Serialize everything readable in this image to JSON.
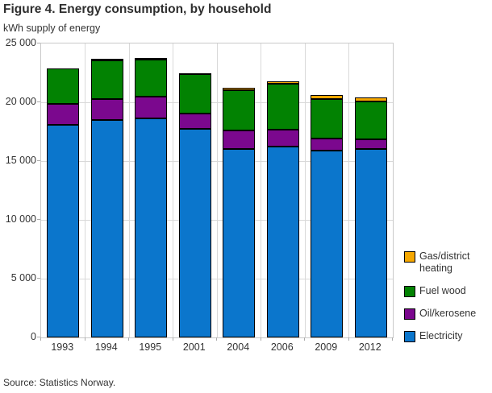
{
  "header": {
    "title": "Figure 4. Energy consumption, by household"
  },
  "chart_data": {
    "type": "bar",
    "stacked": true,
    "title": "Figure 4. Energy consumption, by household",
    "y_axis_title": "kWh supply of energy",
    "categories": [
      "1993",
      "1994",
      "1995",
      "2001",
      "2004",
      "2006",
      "2009",
      "2012"
    ],
    "series": [
      {
        "name": "Electricity",
        "color": "#0b76cc",
        "values": [
          18100,
          18500,
          18600,
          17750,
          16000,
          16250,
          15900,
          16000
        ]
      },
      {
        "name": "Oil/kerosene",
        "color": "#7b088e",
        "values": [
          1750,
          1800,
          1900,
          1300,
          1600,
          1450,
          1050,
          850
        ]
      },
      {
        "name": "Fuel wood",
        "color": "#028202",
        "values": [
          3000,
          3250,
          3150,
          3350,
          3450,
          3850,
          3350,
          3200
        ]
      },
      {
        "name": "Gas/district heating",
        "color": "#f5a700",
        "values": [
          0,
          150,
          100,
          100,
          150,
          250,
          300,
          350
        ]
      }
    ],
    "totals": [
      22850,
      23700,
      23750,
      22500,
      21200,
      21800,
      20600,
      20400
    ],
    "ylim": [
      0,
      25000
    ],
    "y_ticks": [
      "25 000",
      "20 000",
      "15 000",
      "10 000",
      "5 000",
      "0"
    ],
    "grid": true,
    "legend_position": "right",
    "legend": [
      "Gas/district heating",
      "Fuel wood",
      "Oil/kerosene",
      "Electricity"
    ]
  },
  "footer": {
    "source": "Source: Statistics Norway."
  }
}
